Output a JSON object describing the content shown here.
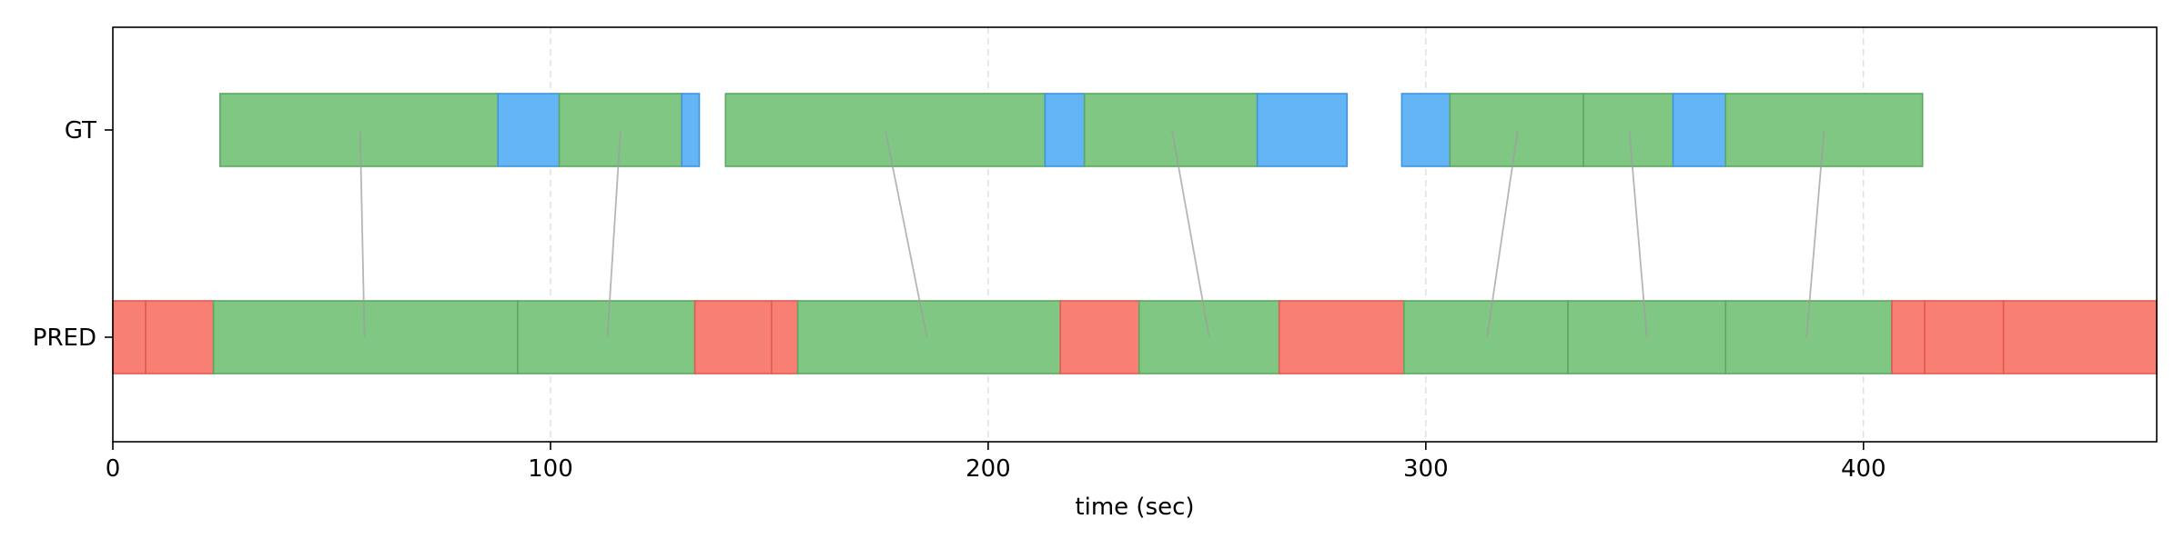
{
  "chart_data": {
    "type": "timeline",
    "xlabel": "time (sec)",
    "xlim": [
      0,
      467
    ],
    "xticks": [
      0,
      100,
      200,
      300,
      400
    ],
    "grid_x": true,
    "tracks": [
      {
        "label": "GT",
        "segments": [
          {
            "start": 24.5,
            "end": 88,
            "color": "#81c784"
          },
          {
            "start": 88,
            "end": 102,
            "color": "#64b5f6"
          },
          {
            "start": 102,
            "end": 130,
            "color": "#81c784"
          },
          {
            "start": 130,
            "end": 134,
            "color": "#64b5f6"
          },
          {
            "start": 140,
            "end": 213,
            "color": "#81c784"
          },
          {
            "start": 213,
            "end": 222,
            "color": "#64b5f6"
          },
          {
            "start": 222,
            "end": 261.5,
            "color": "#81c784"
          },
          {
            "start": 261.5,
            "end": 282,
            "color": "#64b5f6"
          },
          {
            "start": 294.5,
            "end": 305.5,
            "color": "#64b5f6"
          },
          {
            "start": 305.5,
            "end": 336,
            "color": "#81c784"
          },
          {
            "start": 336,
            "end": 356.5,
            "color": "#81c784"
          },
          {
            "start": 356.5,
            "end": 368.5,
            "color": "#64b5f6"
          },
          {
            "start": 368.5,
            "end": 413.5,
            "color": "#81c784"
          }
        ]
      },
      {
        "label": "PRED",
        "segments": [
          {
            "start": 0,
            "end": 7.5,
            "color": "#f77f74"
          },
          {
            "start": 7.5,
            "end": 23,
            "color": "#f77f74"
          },
          {
            "start": 23,
            "end": 92.5,
            "color": "#81c784"
          },
          {
            "start": 92.5,
            "end": 133,
            "color": "#81c784"
          },
          {
            "start": 133,
            "end": 150.5,
            "color": "#f77f74"
          },
          {
            "start": 150.5,
            "end": 156.5,
            "color": "#f77f74"
          },
          {
            "start": 156.5,
            "end": 216.5,
            "color": "#81c784"
          },
          {
            "start": 216.5,
            "end": 234.5,
            "color": "#f77f74"
          },
          {
            "start": 234.5,
            "end": 266.5,
            "color": "#81c784"
          },
          {
            "start": 266.5,
            "end": 295,
            "color": "#f77f74"
          },
          {
            "start": 295,
            "end": 332.5,
            "color": "#81c784"
          },
          {
            "start": 332.5,
            "end": 368.5,
            "color": "#81c784"
          },
          {
            "start": 368.5,
            "end": 406.5,
            "color": "#81c784"
          },
          {
            "start": 406.5,
            "end": 414,
            "color": "#f77f74"
          },
          {
            "start": 414,
            "end": 432,
            "color": "#f77f74"
          },
          {
            "start": 432,
            "end": 467,
            "color": "#f77f74"
          }
        ]
      }
    ],
    "links": [
      {
        "gt_x": 56.5,
        "pred_x": 57.5
      },
      {
        "gt_x": 116,
        "pred_x": 113
      },
      {
        "gt_x": 176.5,
        "pred_x": 186
      },
      {
        "gt_x": 242,
        "pred_x": 250.5
      },
      {
        "gt_x": 321,
        "pred_x": 314
      },
      {
        "gt_x": 346.5,
        "pred_x": 350.5
      },
      {
        "gt_x": 391,
        "pred_x": 387
      }
    ],
    "colors": {
      "match": "#81c784",
      "gt_other": "#64b5f6",
      "pred_unmatched": "#f77f74",
      "link": "#9e9e9e"
    }
  }
}
